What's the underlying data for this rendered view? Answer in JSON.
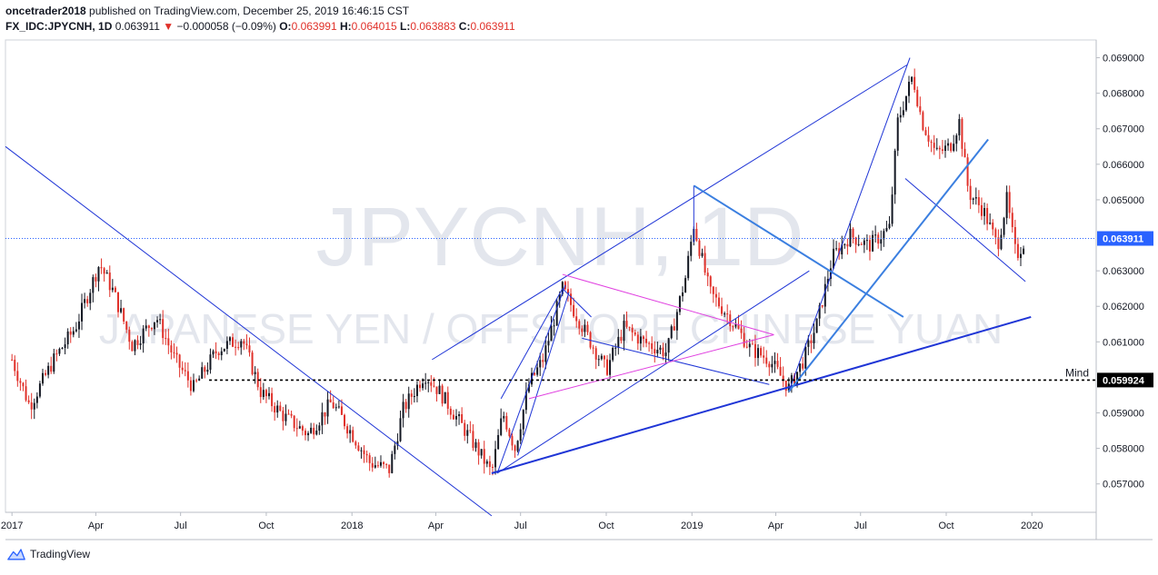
{
  "header": {
    "publisher_user": "oncetrader2018",
    "publisher_suffix": " published on TradingView.com, December 25, 2019 16:46:15 CST",
    "symbol": "FX_IDC:JPYCNH, 1D",
    "last": "0.063911",
    "change_arrow": "▼",
    "change": "−0.000058 (−0.09%)",
    "o_label": "O:",
    "o_value": "0.063991",
    "h_label": "H:",
    "h_value": "0.064015",
    "l_label": "L:",
    "l_value": "0.063883",
    "c_label": "C:",
    "c_value": "0.063911"
  },
  "watermark": {
    "ticker": "JPYCNH, 1D",
    "description": "JAPANESE YEN / OFFSHORE CHINESE YUAN"
  },
  "footer": {
    "brand": "TradingView"
  },
  "colors": {
    "candle_up": "#131722",
    "candle_down": "#e0312a",
    "trend_line": "#1f35d6",
    "trend_line_light": "#3b7fe0",
    "triangle_line": "#e040e0",
    "price_label_bg": "#2962ff",
    "mind_label_bg": "#000000"
  },
  "chart_data": {
    "type": "candlestick",
    "x_axis_labels": [
      "2017",
      "Apr",
      "Jul",
      "Oct",
      "2018",
      "Apr",
      "Jul",
      "Oct",
      "2019",
      "Apr",
      "Jul",
      "Oct",
      "2020"
    ],
    "y_axis_labels": [
      "0.069000",
      "0.068000",
      "0.067000",
      "0.066000",
      "0.065000",
      "0.063000",
      "0.062000",
      "0.061000",
      "0.059000",
      "0.058000",
      "0.057000"
    ],
    "ylim": [
      0.0562,
      0.0695
    ],
    "current_price": {
      "value": 0.063911,
      "label": "0.063911"
    },
    "mind_level": {
      "value": 0.059924,
      "label": "0.059924",
      "text": "Mind"
    },
    "grid": false,
    "series_close": [
      {
        "d": "2017-01-01",
        "v": 0.0605
      },
      {
        "d": "2017-01-20",
        "v": 0.0592
      },
      {
        "d": "2017-02-15",
        "v": 0.0605
      },
      {
        "d": "2017-03-10",
        "v": 0.0614
      },
      {
        "d": "2017-04-05",
        "v": 0.0632
      },
      {
        "d": "2017-04-20",
        "v": 0.0624
      },
      {
        "d": "2017-05-10",
        "v": 0.0609
      },
      {
        "d": "2017-06-05",
        "v": 0.0617
      },
      {
        "d": "2017-06-25",
        "v": 0.0605
      },
      {
        "d": "2017-07-15",
        "v": 0.0597
      },
      {
        "d": "2017-08-10",
        "v": 0.0608
      },
      {
        "d": "2017-09-05",
        "v": 0.0611
      },
      {
        "d": "2017-09-25",
        "v": 0.0596
      },
      {
        "d": "2017-10-20",
        "v": 0.0589
      },
      {
        "d": "2017-11-15",
        "v": 0.0584
      },
      {
        "d": "2017-12-10",
        "v": 0.0593
      },
      {
        "d": "2017-12-30",
        "v": 0.0585
      },
      {
        "d": "2018-01-20",
        "v": 0.0576
      },
      {
        "d": "2018-02-10",
        "v": 0.0574
      },
      {
        "d": "2018-02-25",
        "v": 0.0591
      },
      {
        "d": "2018-03-20",
        "v": 0.0601
      },
      {
        "d": "2018-04-05",
        "v": 0.0596
      },
      {
        "d": "2018-04-25",
        "v": 0.0588
      },
      {
        "d": "2018-05-15",
        "v": 0.058
      },
      {
        "d": "2018-05-31",
        "v": 0.0573
      },
      {
        "d": "2018-06-12",
        "v": 0.059
      },
      {
        "d": "2018-06-25",
        "v": 0.058
      },
      {
        "d": "2018-07-10",
        "v": 0.0598
      },
      {
        "d": "2018-07-25",
        "v": 0.0605
      },
      {
        "d": "2018-08-15",
        "v": 0.0625
      },
      {
        "d": "2018-09-10",
        "v": 0.0612
      },
      {
        "d": "2018-10-01",
        "v": 0.0602
      },
      {
        "d": "2018-10-20",
        "v": 0.0614
      },
      {
        "d": "2018-11-10",
        "v": 0.061
      },
      {
        "d": "2018-12-05",
        "v": 0.0607
      },
      {
        "d": "2018-12-25",
        "v": 0.0628
      },
      {
        "d": "2019-01-03",
        "v": 0.0643
      },
      {
        "d": "2019-01-20",
        "v": 0.0624
      },
      {
        "d": "2019-02-10",
        "v": 0.0617
      },
      {
        "d": "2019-03-05",
        "v": 0.0608
      },
      {
        "d": "2019-03-25",
        "v": 0.0605
      },
      {
        "d": "2019-04-15",
        "v": 0.0597
      },
      {
        "d": "2019-05-01",
        "v": 0.0605
      },
      {
        "d": "2019-05-15",
        "v": 0.0615
      },
      {
        "d": "2019-06-01",
        "v": 0.0634
      },
      {
        "d": "2019-06-20",
        "v": 0.064
      },
      {
        "d": "2019-07-10",
        "v": 0.0637
      },
      {
        "d": "2019-08-01",
        "v": 0.0642
      },
      {
        "d": "2019-08-10",
        "v": 0.0672
      },
      {
        "d": "2019-08-26",
        "v": 0.0685
      },
      {
        "d": "2019-09-05",
        "v": 0.0672
      },
      {
        "d": "2019-09-20",
        "v": 0.0663
      },
      {
        "d": "2019-10-05",
        "v": 0.0665
      },
      {
        "d": "2019-10-15",
        "v": 0.0672
      },
      {
        "d": "2019-10-25",
        "v": 0.0652
      },
      {
        "d": "2019-11-10",
        "v": 0.0647
      },
      {
        "d": "2019-11-25",
        "v": 0.0637
      },
      {
        "d": "2019-12-05",
        "v": 0.065
      },
      {
        "d": "2019-12-15",
        "v": 0.0634
      },
      {
        "d": "2019-12-25",
        "v": 0.0639
      }
    ],
    "drawings": [
      {
        "kind": "line",
        "color": "trend_line",
        "p1": {
          "d": "2016-12-25",
          "v": 0.0665
        },
        "p2": {
          "d": "2018-05-31",
          "v": 0.0561
        }
      },
      {
        "kind": "line",
        "color": "trend_line",
        "p1": {
          "d": "2018-03-28",
          "v": 0.0605
        },
        "p2": {
          "d": "2019-08-20",
          "v": 0.0688
        }
      },
      {
        "kind": "line",
        "color": "trend_line",
        "p1": {
          "d": "2018-05-31",
          "v": 0.0573
        },
        "p2": {
          "d": "2019-12-31",
          "v": 0.0617
        },
        "width": 2
      },
      {
        "kind": "line",
        "color": "trend_line",
        "p1": {
          "d": "2018-06-06",
          "v": 0.0573
        },
        "p2": {
          "d": "2019-05-07",
          "v": 0.063
        }
      },
      {
        "kind": "line",
        "color": "trend_line",
        "p1": {
          "d": "2018-06-06",
          "v": 0.0573
        },
        "p2": {
          "d": "2018-08-18",
          "v": 0.0626
        }
      },
      {
        "kind": "line",
        "color": "trend_line",
        "p1": {
          "d": "2018-06-10",
          "v": 0.0594
        },
        "p2": {
          "d": "2018-08-15",
          "v": 0.0625
        }
      },
      {
        "kind": "line",
        "color": "trend_line",
        "p1": {
          "d": "2018-06-28",
          "v": 0.0578
        },
        "p2": {
          "d": "2018-08-22",
          "v": 0.0624
        }
      },
      {
        "kind": "line",
        "color": "trend_line",
        "p1": {
          "d": "2018-08-15",
          "v": 0.0625
        },
        "p2": {
          "d": "2018-09-15",
          "v": 0.0617
        }
      },
      {
        "kind": "line",
        "color": "trend_line",
        "p1": {
          "d": "2018-09-05",
          "v": 0.0611
        },
        "p2": {
          "d": "2019-03-25",
          "v": 0.0598
        }
      },
      {
        "kind": "line",
        "color": "trend_line",
        "p1": {
          "d": "2019-04-15",
          "v": 0.0596
        },
        "p2": {
          "d": "2019-08-23",
          "v": 0.069
        }
      },
      {
        "kind": "line",
        "color": "trend_line",
        "p1": {
          "d": "2019-08-18",
          "v": 0.0656
        },
        "p2": {
          "d": "2019-12-25",
          "v": 0.0627
        }
      },
      {
        "kind": "line",
        "color": "trend_line",
        "p1": {
          "d": "2019-01-03",
          "v": 0.0654
        },
        "p2": {
          "d": "2019-01-03",
          "v": 0.0638
        }
      },
      {
        "kind": "line",
        "color": "trend_line_light",
        "p1": {
          "d": "2019-01-03",
          "v": 0.0654
        },
        "p2": {
          "d": "2019-08-16",
          "v": 0.0617
        },
        "width": 2
      },
      {
        "kind": "line",
        "color": "trend_line_light",
        "p1": {
          "d": "2019-04-15",
          "v": 0.0596
        },
        "p2": {
          "d": "2019-11-15",
          "v": 0.0667
        },
        "width": 2
      },
      {
        "kind": "line",
        "color": "triangle_line",
        "p1": {
          "d": "2018-08-15",
          "v": 0.0629
        },
        "p2": {
          "d": "2019-03-30",
          "v": 0.0612
        }
      },
      {
        "kind": "line",
        "color": "triangle_line",
        "p1": {
          "d": "2018-07-10",
          "v": 0.0594
        },
        "p2": {
          "d": "2019-03-30",
          "v": 0.0612
        }
      }
    ]
  }
}
